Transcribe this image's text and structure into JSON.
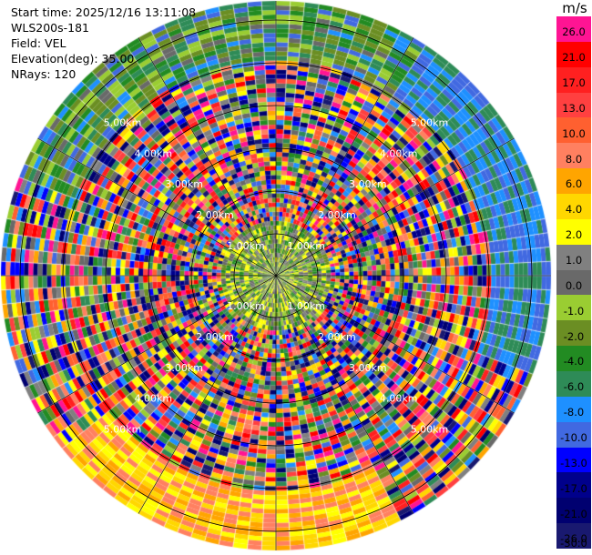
{
  "info": {
    "start_time": "Start time: 2025/12/16 13:11:08",
    "instrument": "WLS200s-181",
    "field": "Field: VEL",
    "elevation": "Elevation(deg): 35.00",
    "nrays": "NRays: 120"
  },
  "colorbar": {
    "unit": "m/s",
    "labels": [
      "26.0",
      "21.0",
      "17.0",
      "13.0",
      "10.0",
      "8.0",
      "6.0",
      "4.0",
      "2.0",
      "1.0",
      "0.0",
      "-1.0",
      "-2.0",
      "-4.0",
      "-6.0",
      "-8.0",
      "-10.0",
      "-13.0",
      "-17.0",
      "-21.0",
      "-26.0",
      "-30.0"
    ],
    "colors": [
      "#ff1493",
      "#ff0000",
      "#ff2020",
      "#ff4040",
      "#ff6030",
      "#ff8060",
      "#ffa500",
      "#ffd700",
      "#ffff00",
      "#808080",
      "#696969",
      "#9acd32",
      "#6b8e23",
      "#228b22",
      "#2e8b57",
      "#1e90ff",
      "#4169e1",
      "#0000ff",
      "#00008b",
      "#000070",
      "#191970"
    ]
  },
  "range_rings": {
    "labels": [
      "1.00km",
      "2.00km",
      "3.00km",
      "4.00km",
      "5.00km"
    ]
  }
}
